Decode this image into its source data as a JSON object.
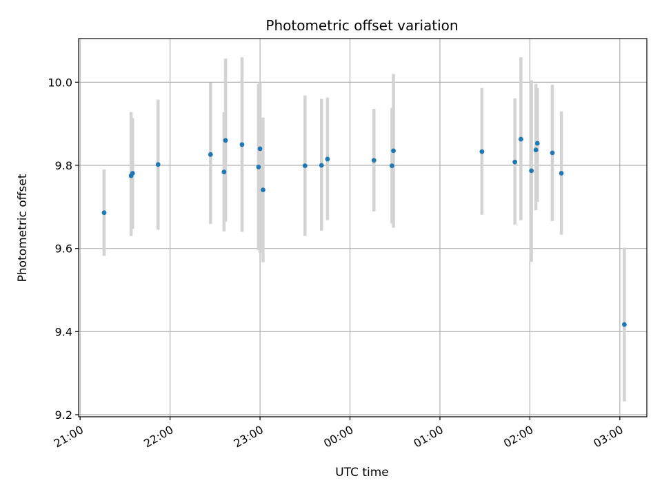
{
  "chart_data": {
    "type": "scatter",
    "title": "Photometric offset variation",
    "xlabel": "UTC time",
    "ylabel": "Photometric offset",
    "x_axis": "time",
    "x_ticks": [
      "21:00",
      "22:00",
      "23:00",
      "00:00",
      "01:00",
      "02:00",
      "03:00"
    ],
    "x_tick_minutes": [
      0,
      60,
      120,
      180,
      240,
      300,
      360
    ],
    "xlim_minutes": [
      -1,
      378
    ],
    "y_ticks": [
      9.2,
      9.4,
      9.6,
      9.8,
      10.0
    ],
    "ylim": [
      9.195,
      10.105
    ],
    "grid": true,
    "marker_color": "#1f77b4",
    "errorbar_color": "#d3d3d3",
    "points": [
      {
        "time": "21:16",
        "y": 9.686,
        "lo": 9.582,
        "hi": 9.79
      },
      {
        "time": "21:34",
        "y": 9.775,
        "lo": 9.63,
        "hi": 9.928
      },
      {
        "time": "21:35",
        "y": 9.781,
        "lo": 9.647,
        "hi": 9.914
      },
      {
        "time": "21:52",
        "y": 9.802,
        "lo": 9.645,
        "hi": 9.958
      },
      {
        "time": "22:27",
        "y": 9.826,
        "lo": 9.659,
        "hi": 9.999
      },
      {
        "time": "22:36",
        "y": 9.784,
        "lo": 9.641,
        "hi": 9.928
      },
      {
        "time": "22:37",
        "y": 9.86,
        "lo": 9.665,
        "hi": 10.057
      },
      {
        "time": "22:48",
        "y": 9.85,
        "lo": 9.64,
        "hi": 10.06
      },
      {
        "time": "22:59",
        "y": 9.796,
        "lo": 9.596,
        "hi": 9.996
      },
      {
        "time": "23:00",
        "y": 9.84,
        "lo": 9.59,
        "hi": 10.0
      },
      {
        "time": "23:02",
        "y": 9.741,
        "lo": 9.567,
        "hi": 9.915
      },
      {
        "time": "23:30",
        "y": 9.799,
        "lo": 9.63,
        "hi": 9.968
      },
      {
        "time": "23:41",
        "y": 9.8,
        "lo": 9.643,
        "hi": 9.96
      },
      {
        "time": "23:45",
        "y": 9.815,
        "lo": 9.668,
        "hi": 9.963
      },
      {
        "time": "00:16",
        "y": 9.812,
        "lo": 9.689,
        "hi": 9.936
      },
      {
        "time": "00:28",
        "y": 9.799,
        "lo": 9.66,
        "hi": 9.938
      },
      {
        "time": "00:29",
        "y": 9.835,
        "lo": 9.65,
        "hi": 10.02
      },
      {
        "time": "01:28",
        "y": 9.833,
        "lo": 9.681,
        "hi": 9.986
      },
      {
        "time": "01:50",
        "y": 9.808,
        "lo": 9.657,
        "hi": 9.961
      },
      {
        "time": "01:54",
        "y": 9.863,
        "lo": 9.668,
        "hi": 10.06
      },
      {
        "time": "02:01",
        "y": 9.787,
        "lo": 9.568,
        "hi": 10.005
      },
      {
        "time": "02:04",
        "y": 9.837,
        "lo": 9.692,
        "hi": 9.996
      },
      {
        "time": "02:05",
        "y": 9.853,
        "lo": 9.712,
        "hi": 9.986
      },
      {
        "time": "02:15",
        "y": 9.83,
        "lo": 9.666,
        "hi": 9.994
      },
      {
        "time": "02:21",
        "y": 9.781,
        "lo": 9.633,
        "hi": 9.93
      },
      {
        "time": "03:03",
        "y": 9.417,
        "lo": 9.232,
        "hi": 9.602
      }
    ]
  }
}
